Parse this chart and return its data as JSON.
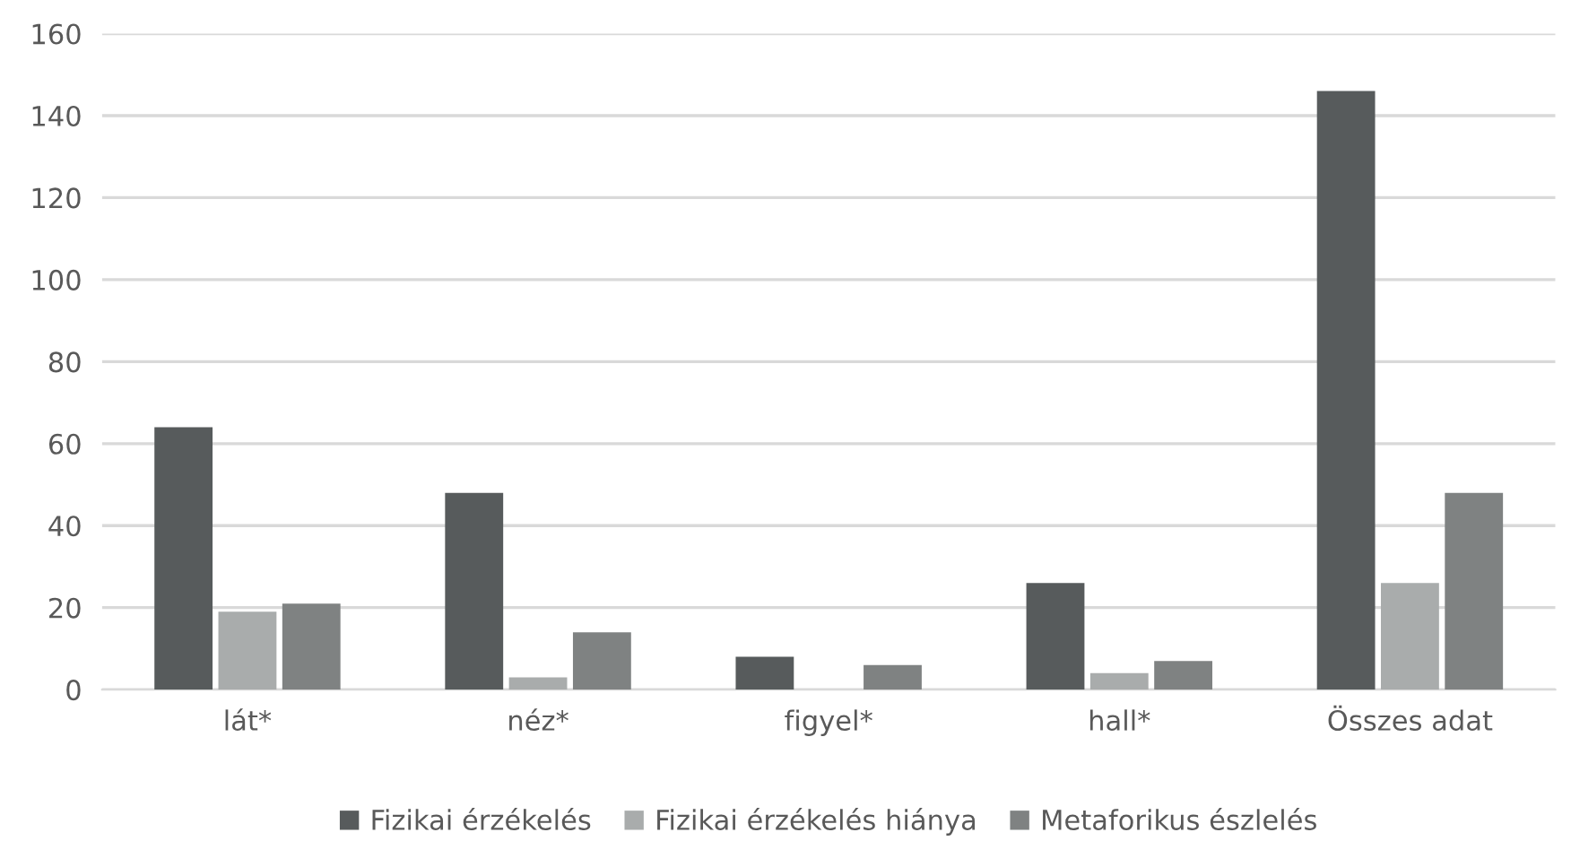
{
  "chart_data": {
    "type": "bar",
    "categories": [
      "lát*",
      "néz*",
      "figyel*",
      "hall*",
      "Összes adat"
    ],
    "series": [
      {
        "name": "Fizikai érzékelés",
        "color": "#575b5c",
        "values": [
          64,
          48,
          8,
          26,
          146
        ]
      },
      {
        "name": "Fizikai érzékelés hiánya",
        "color": "#a9acac",
        "values": [
          19,
          3,
          0,
          4,
          26
        ]
      },
      {
        "name": "Metaforikus észlelés",
        "color": "#7f8282",
        "values": [
          21,
          14,
          6,
          7,
          48
        ]
      }
    ],
    "ylim": [
      0,
      160
    ],
    "yticks": [
      0,
      20,
      40,
      60,
      80,
      100,
      120,
      140,
      160
    ],
    "grid": "y",
    "legend": "bottom"
  }
}
